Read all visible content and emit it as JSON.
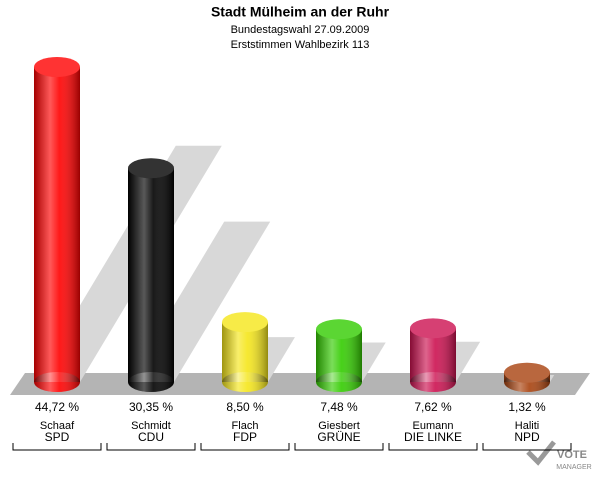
{
  "chart_data": {
    "type": "bar",
    "title": "Stadt Mülheim an der Ruhr",
    "subtitles": [
      "Bundestagswahl 27.09.2009",
      "Erststimmen Wahlbezirk 113"
    ],
    "categories": [
      "Schaaf",
      "Schmidt",
      "Flach",
      "Giesbert",
      "Eumann",
      "Haliti"
    ],
    "parties": [
      "SPD",
      "CDU",
      "FDP",
      "GRÜNE",
      "DIE LINKE",
      "NPD"
    ],
    "values": [
      44.72,
      30.35,
      8.5,
      7.48,
      7.62,
      1.32
    ],
    "value_labels": [
      "44,72 %",
      "30,35 %",
      "8,50 %",
      "7,48 %",
      "7,62 %",
      "1,32 %"
    ],
    "colors": [
      "#ff0000",
      "#000000",
      "#f5e61a",
      "#33cc00",
      "#cc1150",
      "#a8420e"
    ],
    "ylim": [
      0,
      45
    ],
    "logo": [
      "VOTE",
      "MANAGER"
    ]
  }
}
